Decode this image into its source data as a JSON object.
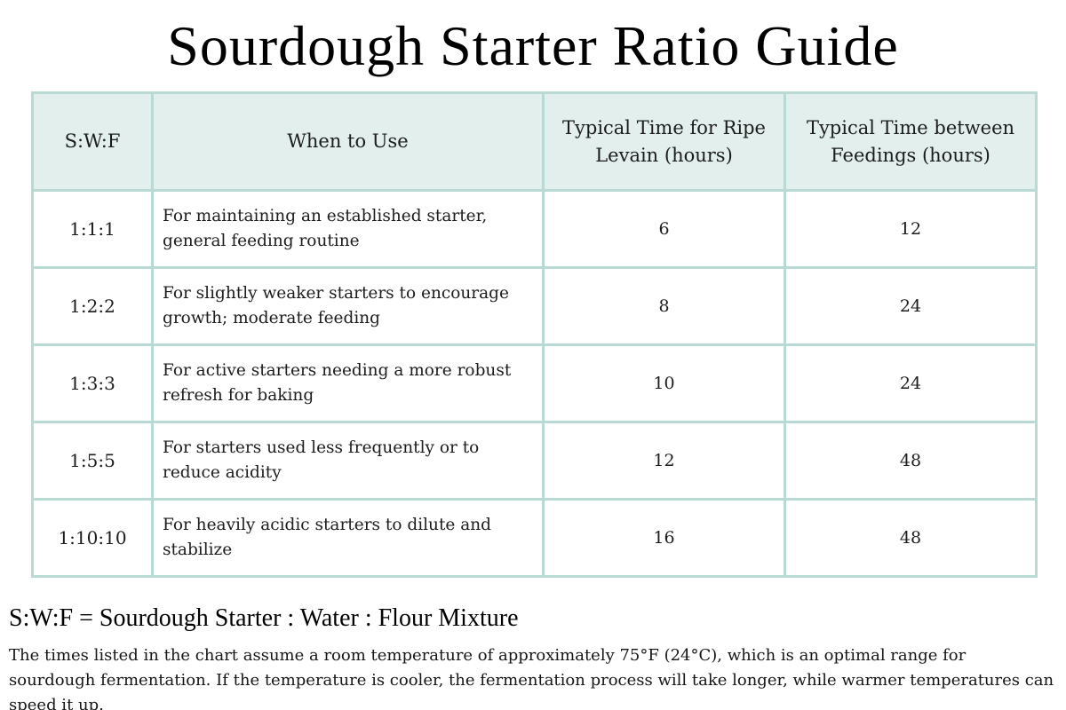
{
  "title": "Sourdough Starter Ratio Guide",
  "theme": {
    "page-bg": "#ffffff",
    "text-color": "#111111",
    "header-bg": "#e2efec",
    "table-border": "#b9d9d5"
  },
  "table": {
    "columns": [
      {
        "label": "S:W:F"
      },
      {
        "label": "When to Use"
      },
      {
        "label": "Typical Time for Ripe Levain (hours)"
      },
      {
        "label": "Typical Time between Feedings (hours)"
      }
    ],
    "rows": [
      {
        "ratio": "1:1:1",
        "when_to_use": "For maintaining an established starter, general feeding routine",
        "ripe_levain_hours": "6",
        "between_feedings_hours": "12"
      },
      {
        "ratio": "1:2:2",
        "when_to_use": "For slightly weaker starters to encourage growth; moderate feeding",
        "ripe_levain_hours": "8",
        "between_feedings_hours": "24"
      },
      {
        "ratio": "1:3:3",
        "when_to_use": "For active starters needing a more robust refresh for baking",
        "ripe_levain_hours": "10",
        "between_feedings_hours": "24"
      },
      {
        "ratio": "1:5:5",
        "when_to_use": "For starters used less frequently or to reduce acidity",
        "ripe_levain_hours": "12",
        "between_feedings_hours": "48"
      },
      {
        "ratio": "1:10:10",
        "when_to_use": "For heavily acidic starters to dilute and stabilize",
        "ripe_levain_hours": "16",
        "between_feedings_hours": "48"
      }
    ]
  },
  "footer": {
    "legend": "S:W:F = Sourdough Starter : Water : Flour Mixture",
    "note": "The times listed in the chart assume a room temperature of approximately 75°F (24°C), which is an optimal range for sourdough fermentation. If the temperature is cooler, the fermentation process will take longer, while warmer temperatures can speed it up."
  }
}
